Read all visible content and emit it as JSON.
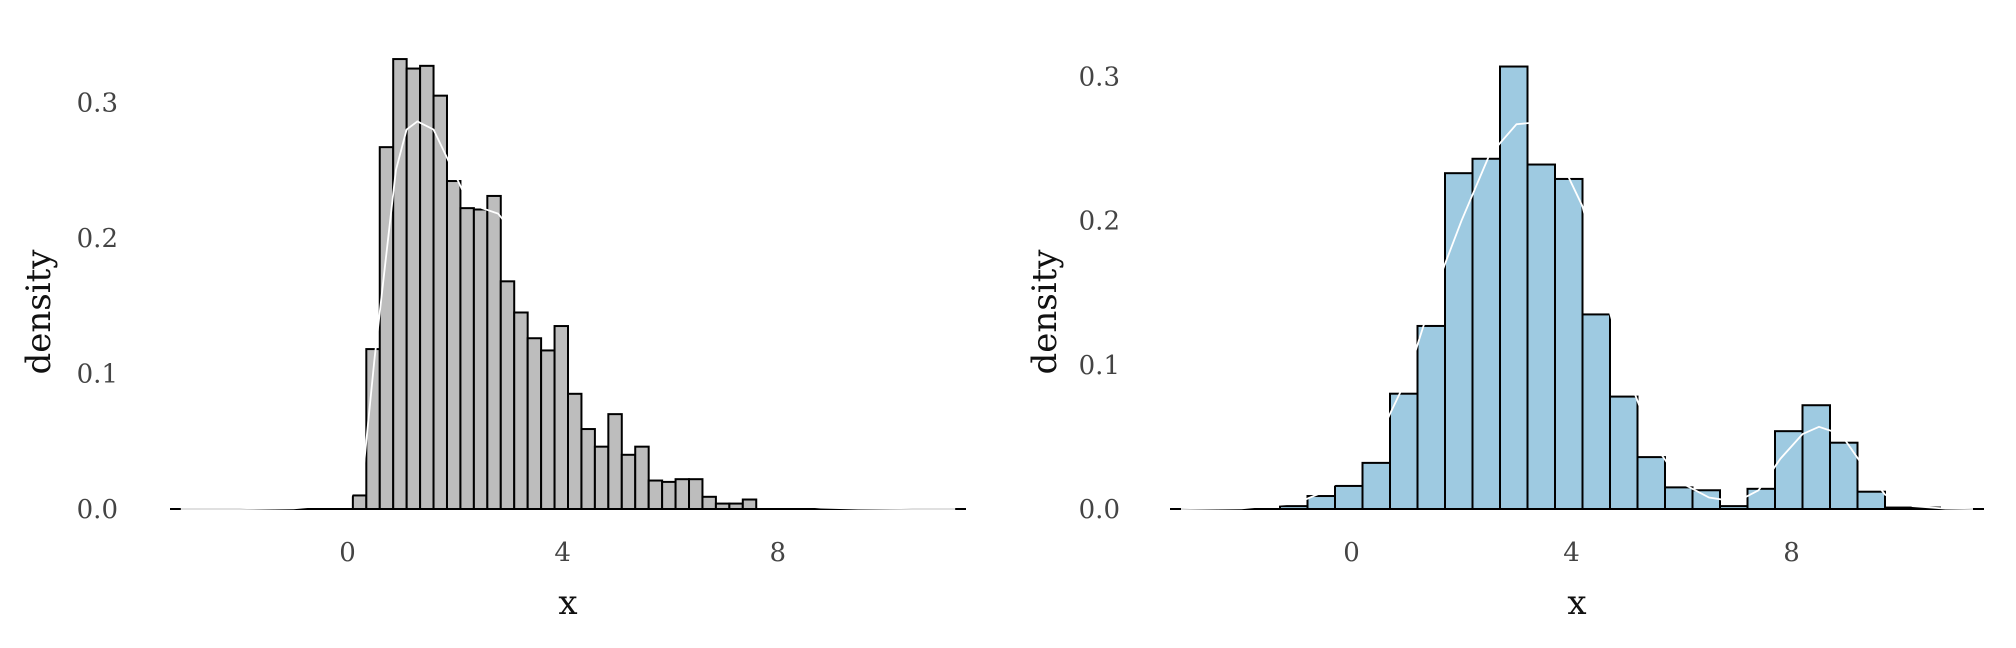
{
  "chart_data": [
    {
      "type": "bar",
      "subtype": "histogram-with-density",
      "xlabel": "x",
      "ylabel": "density",
      "xlim": [
        -3.3,
        11.5
      ],
      "ylim": [
        0,
        0.335
      ],
      "xticks": [
        0,
        4,
        8
      ],
      "yticks": [
        0.0,
        0.1,
        0.2,
        0.3
      ],
      "ytick_labels": [
        "0.0",
        "0.1",
        "0.2",
        "0.3"
      ],
      "bar_fill": "#bdbdbd",
      "bar_edge": "#000000",
      "density_color": "#ffffff",
      "grid": false,
      "bin_width": 0.25,
      "bin_start": 0.1,
      "values": [
        0.01,
        0.118,
        0.267,
        0.332,
        0.325,
        0.327,
        0.305,
        0.242,
        0.222,
        0.221,
        0.231,
        0.168,
        0.145,
        0.126,
        0.117,
        0.135,
        0.085,
        0.059,
        0.046,
        0.07,
        0.04,
        0.046,
        0.021,
        0.02,
        0.022,
        0.022,
        0.009,
        0.004,
        0.004,
        0.007
      ],
      "density_curve": {
        "x": [
          -3.1,
          -2.0,
          -1.0,
          0.0,
          0.3,
          0.5,
          0.7,
          0.9,
          1.1,
          1.3,
          1.6,
          1.9,
          2.2,
          2.5,
          2.8,
          3.1,
          3.4,
          3.7,
          4.0,
          4.3,
          4.6,
          5.0,
          5.4,
          5.8,
          6.2,
          6.6,
          7.0,
          7.4,
          7.8,
          8.2,
          8.8,
          9.5,
          10.5,
          11.3
        ],
        "y": [
          0.0,
          0.0,
          0.0005,
          0.004,
          0.03,
          0.11,
          0.18,
          0.25,
          0.28,
          0.286,
          0.28,
          0.255,
          0.23,
          0.222,
          0.218,
          0.203,
          0.185,
          0.165,
          0.145,
          0.125,
          0.11,
          0.085,
          0.065,
          0.05,
          0.035,
          0.026,
          0.02,
          0.013,
          0.007,
          0.003,
          0.001,
          0.0003,
          0.0,
          0.0
        ]
      }
    },
    {
      "type": "bar",
      "subtype": "histogram-with-density",
      "xlabel": "x",
      "ylabel": "density",
      "xlim": [
        -3.3,
        11.5
      ],
      "ylim": [
        0,
        0.315
      ],
      "xticks": [
        0,
        4,
        8
      ],
      "yticks": [
        0.0,
        0.1,
        0.2,
        0.3
      ],
      "ytick_labels": [
        "0.0",
        "0.1",
        "0.2",
        "0.3"
      ],
      "bar_fill": "#9ecae1",
      "bar_edge": "#000000",
      "density_color": "#ffffff",
      "grid": false,
      "bin_width": 0.5,
      "bin_start": -1.3,
      "values": [
        0.002,
        0.009,
        0.016,
        0.032,
        0.08,
        0.127,
        0.233,
        0.243,
        0.307,
        0.239,
        0.229,
        0.135,
        0.078,
        0.036,
        0.015,
        0.013,
        0.002,
        0.014,
        0.054,
        0.072,
        0.046,
        0.012,
        0.001,
        0.001
      ],
      "density_curve": {
        "x": [
          -3.1,
          -2.0,
          -1.0,
          -0.5,
          0.0,
          0.5,
          1.0,
          1.5,
          2.0,
          2.5,
          3.0,
          3.3,
          3.7,
          4.2,
          4.6,
          5.0,
          5.5,
          6.0,
          6.5,
          7.0,
          7.4,
          7.8,
          8.2,
          8.5,
          8.9,
          9.3,
          9.7,
          10.2,
          10.8,
          11.3
        ],
        "y": [
          0.0,
          0.0005,
          0.004,
          0.012,
          0.025,
          0.05,
          0.09,
          0.15,
          0.2,
          0.245,
          0.267,
          0.268,
          0.25,
          0.21,
          0.15,
          0.095,
          0.045,
          0.018,
          0.008,
          0.005,
          0.013,
          0.035,
          0.052,
          0.057,
          0.052,
          0.03,
          0.01,
          0.002,
          0.0003,
          0.0
        ]
      }
    }
  ]
}
